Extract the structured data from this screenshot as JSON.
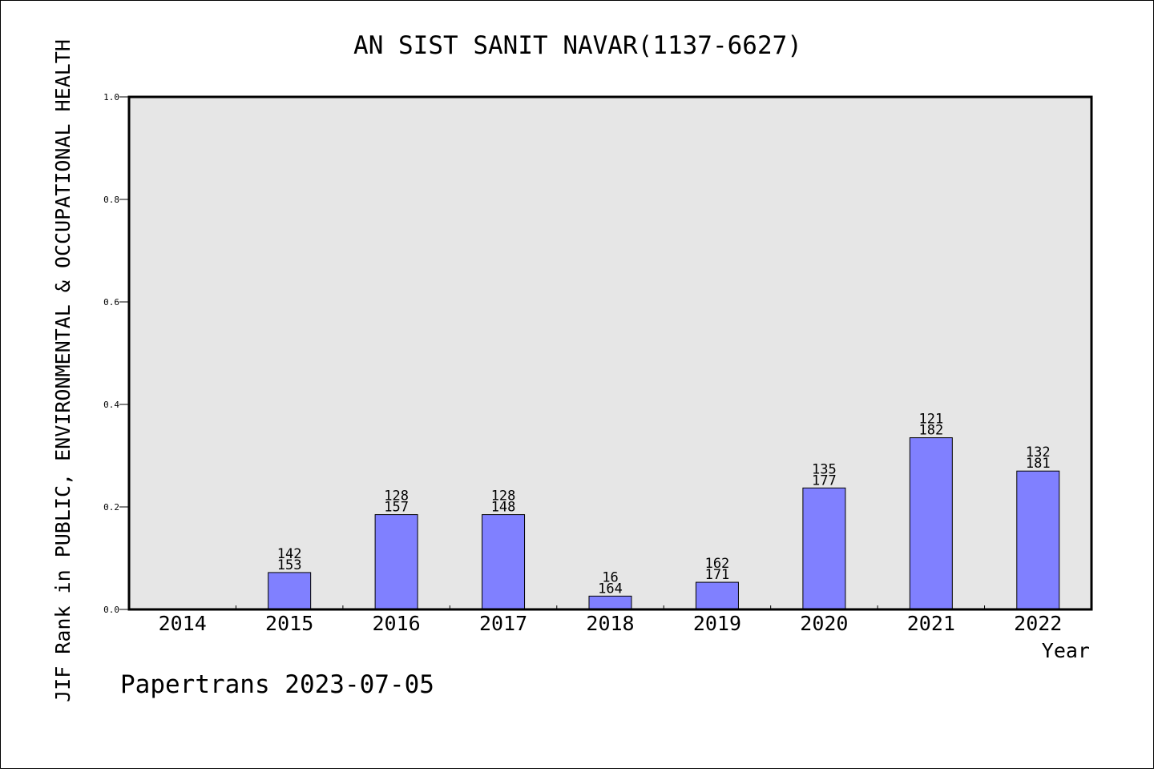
{
  "chart_data": {
    "type": "bar",
    "title": "AN SIST SANIT NAVAR(1137-6627)",
    "xlabel": "Year",
    "ylabel": "JIF Rank in PUBLIC, ENVIRONMENTAL & OCCUPATIONAL HEALTH",
    "ylim": [
      0,
      1.0
    ],
    "yticks": [
      "0.0",
      "0.2",
      "0.4",
      "0.6",
      "0.8",
      "1.0"
    ],
    "categories": [
      "2014",
      "2015",
      "2016",
      "2017",
      "2018",
      "2019",
      "2020",
      "2021",
      "2022"
    ],
    "values": [
      null,
      0.072,
      0.185,
      0.185,
      0.026,
      0.053,
      0.237,
      0.335,
      0.27
    ],
    "label_top": [
      null,
      "142",
      "128",
      "128",
      "16",
      "162",
      "135",
      "121",
      "132"
    ],
    "label_bottom": [
      null,
      "153",
      "157",
      "148",
      "164",
      "171",
      "177",
      "182",
      "181"
    ],
    "grid": false,
    "colors": {
      "bar": "#8080ff",
      "plot_bg": "#e6e6e6"
    }
  },
  "footer": {
    "credit": "Papertrans 2023-07-05"
  }
}
